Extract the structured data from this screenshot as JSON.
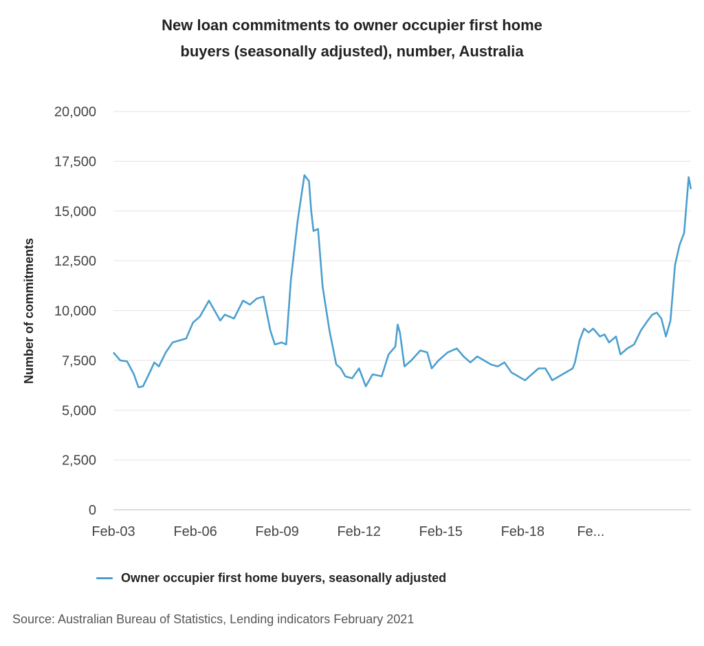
{
  "chart_data": {
    "type": "line",
    "title_lines": [
      "New loan commitments to owner occupier first home",
      "buyers (seasonally adjusted), number, Australia"
    ],
    "ylabel": "Number of commitments",
    "xlabel": "",
    "ylim": [
      0,
      20000
    ],
    "yticks": [
      "0",
      "2,500",
      "5,000",
      "7,500",
      "10,000",
      "12,500",
      "15,000",
      "17,500",
      "20,000"
    ],
    "xtick_labels": [
      "Feb-03",
      "Feb-06",
      "Feb-09",
      "Feb-12",
      "Feb-15",
      "Feb-18",
      "Fe..."
    ],
    "xtick_months": [
      "2003-02",
      "2006-02",
      "2009-02",
      "2012-02",
      "2015-02",
      "2018-02",
      "2021-02"
    ],
    "grid": true,
    "legend_position": "bottom-left",
    "series": [
      {
        "name": "Owner occupier first home buyers, seasonally adjusted",
        "color": "#4a9fcf",
        "points": [
          [
            "2003-02",
            7900
          ],
          [
            "2003-05",
            7500
          ],
          [
            "2003-08",
            7450
          ],
          [
            "2003-11",
            6800
          ],
          [
            "2004-01",
            6150
          ],
          [
            "2004-03",
            6200
          ],
          [
            "2004-06",
            6900
          ],
          [
            "2004-08",
            7400
          ],
          [
            "2004-10",
            7200
          ],
          [
            "2005-01",
            7900
          ],
          [
            "2005-04",
            8400
          ],
          [
            "2005-07",
            8500
          ],
          [
            "2005-10",
            8600
          ],
          [
            "2006-01",
            9400
          ],
          [
            "2006-04",
            9700
          ],
          [
            "2006-08",
            10500
          ],
          [
            "2006-10",
            10100
          ],
          [
            "2007-01",
            9500
          ],
          [
            "2007-03",
            9800
          ],
          [
            "2007-07",
            9600
          ],
          [
            "2007-11",
            10500
          ],
          [
            "2008-02",
            10300
          ],
          [
            "2008-05",
            10600
          ],
          [
            "2008-08",
            10700
          ],
          [
            "2008-11",
            9000
          ],
          [
            "2009-01",
            8300
          ],
          [
            "2009-04",
            8400
          ],
          [
            "2009-06",
            8300
          ],
          [
            "2009-08",
            11500
          ],
          [
            "2009-11",
            14500
          ],
          [
            "2010-02",
            16800
          ],
          [
            "2010-04",
            16500
          ],
          [
            "2010-05",
            15000
          ],
          [
            "2010-06",
            14000
          ],
          [
            "2010-08",
            14100
          ],
          [
            "2010-10",
            11200
          ],
          [
            "2011-01",
            9000
          ],
          [
            "2011-04",
            7300
          ],
          [
            "2011-06",
            7100
          ],
          [
            "2011-08",
            6700
          ],
          [
            "2011-11",
            6600
          ],
          [
            "2012-02",
            7100
          ],
          [
            "2012-05",
            6200
          ],
          [
            "2012-08",
            6800
          ],
          [
            "2012-12",
            6700
          ],
          [
            "2013-03",
            7800
          ],
          [
            "2013-06",
            8200
          ],
          [
            "2013-07",
            9300
          ],
          [
            "2013-08",
            8900
          ],
          [
            "2013-10",
            7200
          ],
          [
            "2014-01",
            7500
          ],
          [
            "2014-05",
            8000
          ],
          [
            "2014-08",
            7900
          ],
          [
            "2014-10",
            7100
          ],
          [
            "2015-01",
            7500
          ],
          [
            "2015-05",
            7900
          ],
          [
            "2015-09",
            8100
          ],
          [
            "2015-12",
            7700
          ],
          [
            "2016-03",
            7400
          ],
          [
            "2016-06",
            7700
          ],
          [
            "2016-09",
            7500
          ],
          [
            "2016-12",
            7300
          ],
          [
            "2017-03",
            7200
          ],
          [
            "2017-06",
            7400
          ],
          [
            "2017-09",
            6900
          ],
          [
            "2017-12",
            6700
          ],
          [
            "2018-03",
            6500
          ],
          [
            "2018-06",
            6800
          ],
          [
            "2018-09",
            7100
          ],
          [
            "2018-12",
            7100
          ],
          [
            "2019-03",
            6500
          ],
          [
            "2019-06",
            6700
          ],
          [
            "2019-09",
            6900
          ],
          [
            "2019-12",
            7100
          ],
          [
            "2020-01",
            7400
          ],
          [
            "2020-03",
            8500
          ],
          [
            "2020-05",
            9100
          ],
          [
            "2020-07",
            8900
          ],
          [
            "2020-09",
            9100
          ],
          [
            "2020-12",
            8700
          ],
          [
            "2021-02",
            8800
          ],
          [
            "2021-04",
            8400
          ],
          [
            "2021-07",
            8700
          ],
          [
            "2021-09",
            7800
          ],
          [
            "2021-12",
            8100
          ],
          [
            "2022-03",
            8300
          ],
          [
            "2022-06",
            9000
          ],
          [
            "2022-09",
            9500
          ],
          [
            "2022-11",
            9800
          ],
          [
            "2023-01",
            9900
          ],
          [
            "2023-03",
            9600
          ],
          [
            "2023-05",
            8700
          ],
          [
            "2023-07",
            9500
          ],
          [
            "2023-09",
            12300
          ],
          [
            "2023-11",
            13300
          ],
          [
            "2024-01",
            13900
          ],
          [
            "2024-03",
            16700
          ],
          [
            "2024-04",
            16100
          ]
        ]
      }
    ]
  },
  "legend": {
    "label": "Owner occupier first home buyers, seasonally adjusted",
    "color": "#4a9fcf"
  },
  "source": "Source: Australian Bureau of Statistics, Lending indicators February 2021"
}
